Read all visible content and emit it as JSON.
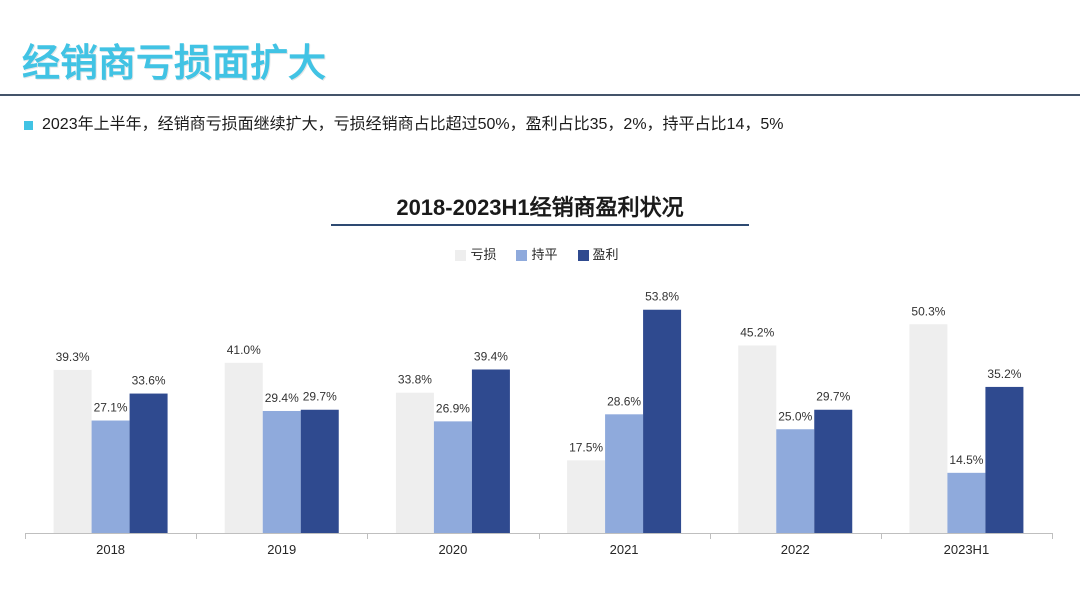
{
  "header": {
    "title": "经销商亏损面扩大"
  },
  "bullet": {
    "text": "2023年上半年，经销商亏损面继续扩大，亏损经销商占比超过50%，盈利占比35，2%，持平占比14，5%"
  },
  "colors": {
    "title": "#41c3e4",
    "bullet": "#41c3e4",
    "title_rule": "#44546a",
    "chart_title_rule": "#2e4a72",
    "axis": "#bfbfbf"
  },
  "chart_data": {
    "type": "bar",
    "title": "2018-2023H1经销商盈利状况",
    "categories": [
      "2018",
      "2019",
      "2020",
      "2021",
      "2022",
      "2023H1"
    ],
    "series": [
      {
        "name": "亏损",
        "color": "#eeeeee",
        "values": [
          39.3,
          41.0,
          33.8,
          17.5,
          45.2,
          50.3
        ],
        "labels": [
          "39.3%",
          "41.0%",
          "33.8%",
          "17.5%",
          "45.2%",
          "50.3%"
        ]
      },
      {
        "name": "持平",
        "color": "#8faadc",
        "values": [
          27.1,
          29.4,
          26.9,
          28.6,
          25.0,
          14.5
        ],
        "labels": [
          "27.1%",
          "29.4%",
          "26.9%",
          "28.6%",
          "25.0%",
          "14.5%"
        ]
      },
      {
        "name": "盈利",
        "color": "#2f4a8f",
        "values": [
          33.6,
          29.7,
          39.4,
          53.8,
          29.7,
          35.2
        ],
        "labels": [
          "33.6%",
          "29.7%",
          "39.4%",
          "53.8%",
          "29.7%",
          "35.2%"
        ]
      }
    ],
    "ylim": [
      0,
      60
    ],
    "grid": false,
    "legend": "top"
  }
}
